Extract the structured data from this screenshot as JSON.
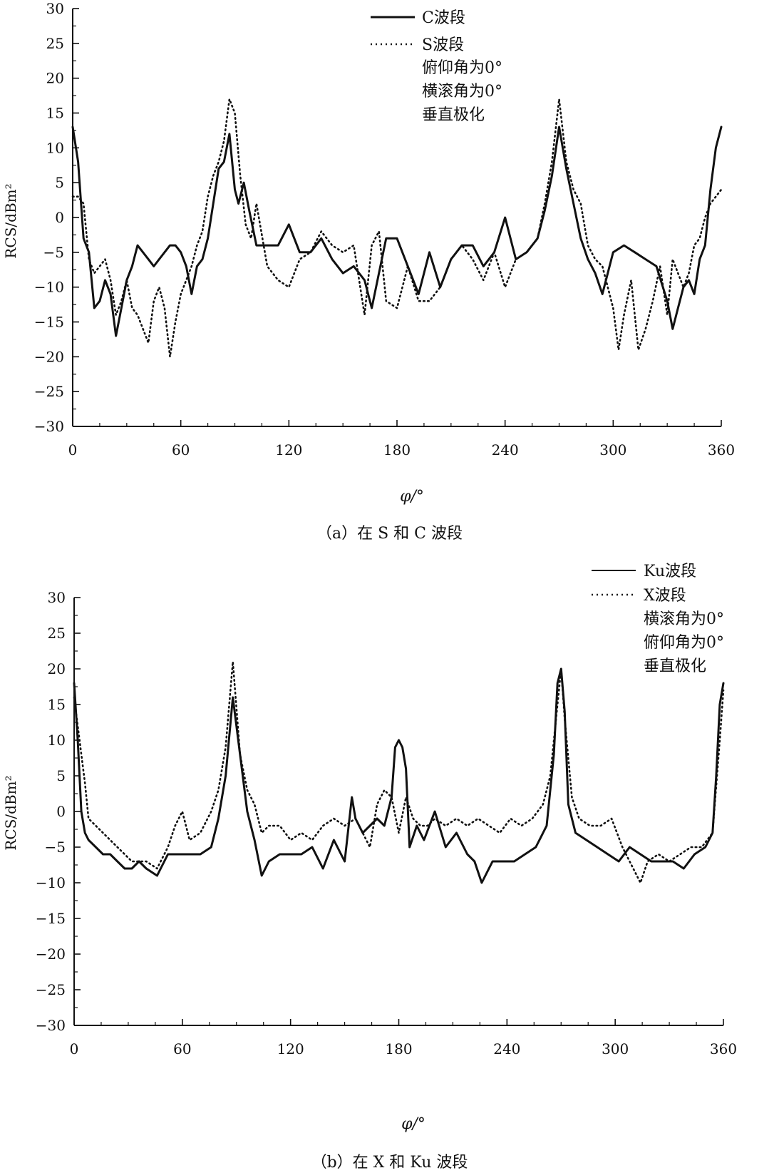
{
  "chart_data": [
    {
      "type": "line",
      "caption": "（a）在 S 和 C 波段",
      "xlabel": "φ/°",
      "ylabel": "RCS/dBm²",
      "xlim": [
        0,
        360
      ],
      "ylim": [
        -30,
        30
      ],
      "xticks": [
        0,
        60,
        120,
        180,
        240,
        300,
        360
      ],
      "yticks": [
        30,
        25,
        20,
        15,
        10,
        5,
        0,
        -5,
        -10,
        -15,
        -20,
        -25,
        -30
      ],
      "grid": false,
      "legend_position": "top-center",
      "legend_notes": [
        "俯仰角为0°",
        "横滚角为0°",
        "垂直极化"
      ],
      "series": [
        {
          "name": "C波段",
          "style": "solid",
          "x": [
            0,
            3,
            6,
            9,
            12,
            15,
            18,
            21,
            24,
            27,
            30,
            33,
            36,
            39,
            42,
            45,
            48,
            51,
            54,
            57,
            60,
            63,
            66,
            69,
            72,
            75,
            78,
            81,
            84,
            87,
            90,
            92,
            95,
            98,
            102,
            108,
            114,
            120,
            126,
            132,
            138,
            144,
            150,
            156,
            162,
            166,
            170,
            174,
            180,
            186,
            192,
            198,
            204,
            210,
            216,
            222,
            228,
            234,
            240,
            246,
            252,
            258,
            262,
            266,
            270,
            274,
            278,
            282,
            286,
            290,
            294,
            300,
            306,
            312,
            318,
            324,
            330,
            333,
            336,
            339,
            342,
            345,
            348,
            351,
            354,
            357,
            360
          ],
          "y": [
            13,
            8,
            -3,
            -5,
            -13,
            -12,
            -9,
            -11,
            -17,
            -13,
            -9,
            -7,
            -4,
            -5,
            -6,
            -7,
            -6,
            -5,
            -4,
            -4,
            -5,
            -7,
            -11,
            -7,
            -6,
            -3,
            2,
            7,
            8,
            12,
            4,
            2,
            5,
            1,
            -4,
            -4,
            -4,
            -1,
            -5,
            -5,
            -3,
            -6,
            -8,
            -7,
            -9,
            -13,
            -8,
            -3,
            -3,
            -7,
            -11,
            -5,
            -10,
            -6,
            -4,
            -4,
            -7,
            -5,
            0,
            -6,
            -5,
            -3,
            1,
            6,
            13,
            7,
            2,
            -3,
            -6,
            -8,
            -11,
            -5,
            -4,
            -5,
            -6,
            -7,
            -12,
            -16,
            -13,
            -10,
            -9,
            -11,
            -6,
            -4,
            4,
            10,
            13
          ]
        },
        {
          "name": "S波段",
          "style": "dotted",
          "x": [
            0,
            3,
            6,
            9,
            12,
            15,
            18,
            21,
            24,
            27,
            30,
            33,
            36,
            39,
            42,
            45,
            48,
            51,
            54,
            57,
            60,
            63,
            66,
            69,
            72,
            75,
            78,
            81,
            84,
            87,
            90,
            93,
            96,
            99,
            102,
            108,
            114,
            120,
            126,
            132,
            138,
            144,
            150,
            156,
            162,
            166,
            170,
            174,
            180,
            186,
            192,
            198,
            204,
            210,
            216,
            222,
            228,
            234,
            240,
            246,
            252,
            258,
            262,
            266,
            270,
            274,
            278,
            282,
            286,
            290,
            294,
            300,
            303,
            306,
            310,
            314,
            318,
            322,
            326,
            330,
            333,
            336,
            339,
            342,
            345,
            348,
            351,
            354,
            357,
            360
          ],
          "y": [
            3,
            3,
            2,
            -6,
            -8,
            -7,
            -6,
            -9,
            -14,
            -12,
            -9,
            -13,
            -14,
            -16,
            -18,
            -12,
            -10,
            -13,
            -20,
            -15,
            -11,
            -9,
            -7,
            -4,
            -2,
            3,
            6,
            8,
            11,
            17,
            15,
            6,
            -1,
            -3,
            2,
            -7,
            -9,
            -10,
            -6,
            -5,
            -2,
            -4,
            -5,
            -4,
            -14,
            -4,
            -2,
            -12,
            -13,
            -7,
            -12,
            -12,
            -10,
            -6,
            -4,
            -6,
            -9,
            -5,
            -10,
            -6,
            -5,
            -3,
            2,
            8,
            17,
            8,
            4,
            2,
            -4,
            -6,
            -7,
            -13,
            -19,
            -14,
            -9,
            -19,
            -16,
            -12,
            -7,
            -14,
            -6,
            -8,
            -10,
            -8,
            -4,
            -3,
            0,
            2,
            3,
            4
          ]
        }
      ]
    },
    {
      "type": "line",
      "caption": "（b）在 X 和 Ku 波段",
      "xlabel": "φ/°",
      "ylabel": "RCS/dBm²",
      "xlim": [
        0,
        360
      ],
      "ylim": [
        -30,
        30
      ],
      "xticks": [
        0,
        60,
        120,
        180,
        240,
        300,
        360
      ],
      "yticks": [
        30,
        25,
        20,
        15,
        10,
        5,
        0,
        -5,
        -10,
        -15,
        -20,
        -25,
        -30
      ],
      "grid": false,
      "legend_position": "top-right",
      "legend_notes": [
        "横滚角为0°",
        "俯仰角为0°",
        "垂直极化"
      ],
      "series": [
        {
          "name": "Ku波段",
          "style": "solid",
          "x": [
            0,
            2,
            4,
            6,
            8,
            12,
            16,
            20,
            24,
            28,
            32,
            36,
            40,
            46,
            52,
            58,
            64,
            70,
            76,
            80,
            84,
            88,
            92,
            96,
            100,
            104,
            108,
            114,
            120,
            126,
            132,
            138,
            144,
            150,
            154,
            156,
            160,
            164,
            168,
            172,
            176,
            178,
            180,
            182,
            184,
            186,
            190,
            194,
            200,
            206,
            212,
            218,
            222,
            226,
            232,
            238,
            244,
            250,
            256,
            262,
            266,
            268,
            270,
            272,
            274,
            278,
            284,
            290,
            296,
            302,
            308,
            314,
            320,
            326,
            332,
            338,
            344,
            350,
            354,
            356,
            358,
            360
          ],
          "y": [
            18,
            10,
            0,
            -3,
            -4,
            -5,
            -6,
            -6,
            -7,
            -8,
            -8,
            -7,
            -8,
            -9,
            -6,
            -6,
            -6,
            -6,
            -5,
            -1,
            5,
            16,
            8,
            0,
            -4,
            -9,
            -7,
            -6,
            -6,
            -6,
            -5,
            -8,
            -4,
            -7,
            2,
            -1,
            -3,
            -2,
            -1,
            -2,
            2,
            9,
            10,
            9,
            6,
            -5,
            -2,
            -4,
            0,
            -5,
            -3,
            -6,
            -7,
            -10,
            -7,
            -7,
            -7,
            -6,
            -5,
            -2,
            8,
            18,
            20,
            14,
            1,
            -3,
            -4,
            -5,
            -6,
            -7,
            -5,
            -6,
            -7,
            -7,
            -7,
            -8,
            -6,
            -5,
            -3,
            5,
            15,
            18
          ]
        },
        {
          "name": "X波段",
          "style": "dotted",
          "x": [
            0,
            2,
            4,
            6,
            8,
            12,
            16,
            20,
            24,
            28,
            32,
            36,
            40,
            46,
            52,
            56,
            60,
            64,
            70,
            76,
            80,
            84,
            88,
            92,
            96,
            100,
            104,
            108,
            114,
            120,
            126,
            132,
            138,
            144,
            150,
            156,
            160,
            164,
            168,
            172,
            176,
            180,
            184,
            188,
            192,
            196,
            200,
            206,
            212,
            218,
            224,
            230,
            236,
            242,
            248,
            254,
            260,
            264,
            268,
            270,
            272,
            276,
            280,
            286,
            292,
            298,
            304,
            310,
            314,
            318,
            324,
            330,
            336,
            342,
            348,
            354,
            358,
            360
          ],
          "y": [
            16,
            12,
            8,
            4,
            -1,
            -2,
            -3,
            -4,
            -5,
            -6,
            -7,
            -7,
            -7,
            -8,
            -5,
            -2,
            0,
            -4,
            -3,
            0,
            3,
            9,
            21,
            8,
            3,
            1,
            -3,
            -2,
            -2,
            -4,
            -3,
            -4,
            -2,
            -1,
            -2,
            -1,
            -3,
            -5,
            1,
            3,
            2,
            -3,
            2,
            -1,
            -2,
            -2,
            -1,
            -2,
            -1,
            -2,
            -1,
            -2,
            -3,
            -1,
            -2,
            -1,
            1,
            5,
            15,
            20,
            13,
            2,
            -1,
            -2,
            -2,
            -1,
            -5,
            -8,
            -10,
            -7,
            -6,
            -7,
            -6,
            -5,
            -5,
            -3,
            10,
            17
          ]
        }
      ]
    }
  ]
}
